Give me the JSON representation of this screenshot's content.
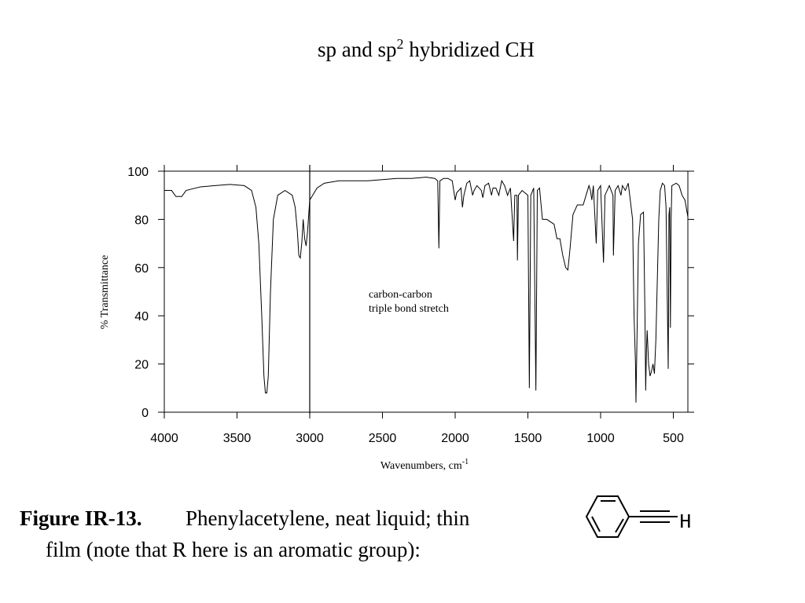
{
  "chart_data": {
    "type": "line",
    "title_main": "sp and sp",
    "title_sup": "2",
    "title_tail": " hybridized CH",
    "x_label": "Wavenumbers, cm",
    "x_label_sup": "-1",
    "y_label": "% Transmittance",
    "annotation": [
      "carbon-carbon",
      "triple bond stretch"
    ],
    "color": "#000000",
    "x": [
      4000,
      3950,
      3920,
      3880,
      3850,
      3750,
      3650,
      3550,
      3450,
      3400,
      3370,
      3350,
      3330,
      3315,
      3305,
      3295,
      3285,
      3270,
      3250,
      3220,
      3170,
      3120,
      3100,
      3085,
      3075,
      3065,
      3055,
      3045,
      3035,
      3025,
      3015,
      3000,
      2980,
      2950,
      2900,
      2800,
      2700,
      2600,
      2500,
      2400,
      2300,
      2200,
      2140,
      2120,
      2112,
      2105,
      2080,
      2050,
      2020,
      2000,
      1990,
      1960,
      1950,
      1940,
      1920,
      1900,
      1880,
      1870,
      1850,
      1820,
      1810,
      1795,
      1770,
      1750,
      1740,
      1720,
      1700,
      1680,
      1660,
      1640,
      1620,
      1598,
      1590,
      1575,
      1572,
      1565,
      1540,
      1500,
      1490,
      1480,
      1460,
      1445,
      1435,
      1420,
      1400,
      1370,
      1320,
      1300,
      1280,
      1260,
      1240,
      1225,
      1210,
      1190,
      1160,
      1120,
      1080,
      1070,
      1060,
      1050,
      1030,
      1020,
      1000,
      980,
      970,
      940,
      915,
      912,
      900,
      880,
      860,
      850,
      830,
      810,
      800,
      780,
      770,
      760,
      757,
      750,
      740,
      725,
      705,
      695,
      690,
      685,
      680,
      670,
      660,
      650,
      640,
      630,
      620,
      600,
      590,
      575,
      560,
      550,
      540,
      535,
      530,
      525,
      520,
      515,
      510,
      480,
      460,
      440,
      420,
      400
    ],
    "values": [
      92,
      92,
      89.5,
      89.5,
      92,
      93.5,
      94,
      94.5,
      94,
      92,
      85,
      70,
      40,
      15,
      8,
      8,
      15,
      50,
      80,
      90,
      92,
      90,
      85,
      75,
      65,
      64,
      70,
      80,
      72,
      69,
      75,
      88,
      90,
      93,
      95,
      96,
      96,
      96,
      96.5,
      97,
      97,
      97.5,
      97,
      96,
      68,
      96,
      97,
      97,
      96,
      88,
      91,
      93,
      85,
      90,
      95,
      96,
      90,
      92,
      94,
      92,
      89,
      94,
      95,
      90,
      93,
      93,
      90,
      96,
      94,
      90,
      93,
      71,
      90,
      90,
      63,
      90,
      92,
      90,
      10,
      90,
      93,
      9,
      92,
      93,
      80,
      80,
      78,
      72,
      72,
      65,
      60,
      59,
      68,
      82,
      86,
      86,
      94,
      92,
      88,
      94,
      70,
      92,
      94,
      62,
      90,
      94,
      90,
      65,
      92,
      94,
      90,
      94,
      92,
      95,
      90,
      80,
      40,
      20,
      4,
      30,
      70,
      82,
      83,
      40,
      9,
      25,
      34,
      20,
      15,
      17,
      20,
      16,
      30,
      80,
      92,
      95,
      94,
      85,
      40,
      18,
      82,
      85,
      35,
      80,
      94,
      95,
      94,
      90,
      88,
      81
    ],
    "reference_lines": [
      3000
    ],
    "xlim": [
      4000,
      400
    ],
    "xticks": [
      4000,
      3500,
      3000,
      2500,
      2000,
      1500,
      1000,
      500
    ],
    "ylim": [
      0,
      100
    ],
    "yticks": [
      0,
      20,
      40,
      60,
      80,
      100
    ]
  },
  "caption": {
    "label": "Figure IR-13.",
    "lines": [
      "Phenylacetylene, neat liquid; thin",
      "film (note that R here is an aromatic group):"
    ]
  },
  "structure": {
    "atom_label": "H"
  }
}
